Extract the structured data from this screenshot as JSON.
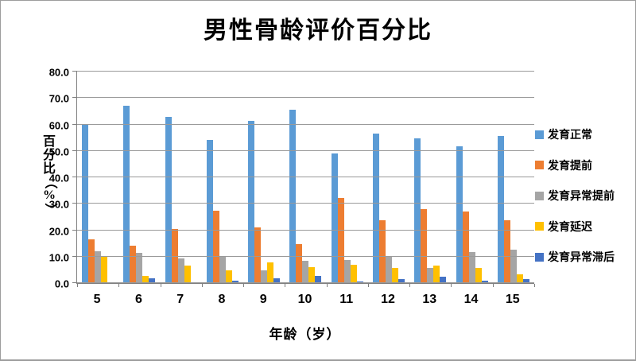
{
  "chart_data": {
    "type": "bar",
    "title": "男性骨龄评价百分比",
    "xlabel": "年龄（岁）",
    "ylabel": "百分比（%）",
    "categories": [
      "5",
      "6",
      "7",
      "8",
      "9",
      "10",
      "11",
      "12",
      "13",
      "14",
      "15"
    ],
    "series": [
      {
        "name": "发育正常",
        "color": "#5B9BD5",
        "values": [
          60.3,
          67.0,
          63.0,
          54.0,
          61.3,
          65.5,
          49.0,
          56.5,
          54.7,
          51.7,
          55.7
        ]
      },
      {
        "name": "发育提前",
        "color": "#ED7D31",
        "values": [
          16.4,
          14.1,
          20.4,
          27.3,
          21.1,
          14.8,
          32.2,
          23.9,
          27.9,
          27.2,
          23.9
        ]
      },
      {
        "name": "发育异常提前",
        "color": "#A5A5A5",
        "values": [
          12.1,
          11.3,
          9.4,
          9.8,
          4.8,
          8.4,
          8.6,
          9.8,
          5.6,
          11.7,
          12.7
        ]
      },
      {
        "name": "发育延迟",
        "color": "#FFC000",
        "values": [
          10.0,
          2.7,
          6.5,
          4.8,
          7.8,
          5.9,
          6.9,
          5.6,
          6.7,
          5.7,
          3.2
        ]
      },
      {
        "name": "发育异常滞后",
        "color": "#4472C4",
        "values": [
          0.0,
          1.9,
          0.0,
          1.0,
          1.9,
          2.6,
          0.5,
          1.4,
          2.5,
          1.0,
          1.6
        ]
      }
    ],
    "ylim": [
      0,
      80
    ],
    "ytick_step": 10,
    "yticks": [
      "0.0",
      "10.0",
      "20.0",
      "30.0",
      "40.0",
      "50.0",
      "60.0",
      "70.0",
      "80.0"
    ],
    "grid": true,
    "legend_position": "right"
  }
}
